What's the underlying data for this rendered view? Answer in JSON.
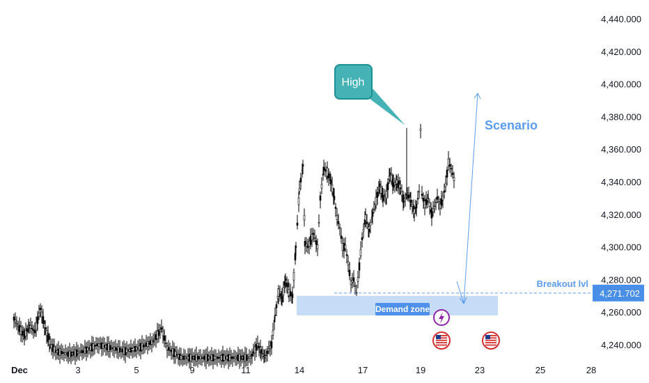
{
  "chart_data": {
    "type": "candlestick",
    "y_axis": {
      "ticks": [
        "4,440.000",
        "4,420.000",
        "4,400.000",
        "4,380.000",
        "4,360.000",
        "4,340.000",
        "4,320.000",
        "4,300.000",
        "4,280.000",
        "4,260.000",
        "4,240.000"
      ],
      "tick_values": [
        4440,
        4420,
        4400,
        4380,
        4360,
        4340,
        4320,
        4300,
        4280,
        4260,
        4240
      ],
      "range": [
        4230,
        4448
      ]
    },
    "x_axis": {
      "ticks": [
        "Dec",
        "3",
        "5",
        "9",
        "11",
        "14",
        "17",
        "19",
        "23",
        "25",
        "28"
      ]
    },
    "price_series": [
      [
        0,
        4256
      ],
      [
        8,
        4250
      ],
      [
        15,
        4245
      ],
      [
        22,
        4252
      ],
      [
        30,
        4248
      ],
      [
        38,
        4262
      ],
      [
        45,
        4250
      ],
      [
        52,
        4240
      ],
      [
        60,
        4236
      ],
      [
        80,
        4234
      ],
      [
        100,
        4236
      ],
      [
        120,
        4240
      ],
      [
        140,
        4238
      ],
      [
        160,
        4236
      ],
      [
        180,
        4238
      ],
      [
        200,
        4242
      ],
      [
        212,
        4250
      ],
      [
        220,
        4238
      ],
      [
        240,
        4232
      ],
      [
        260,
        4232
      ],
      [
        280,
        4232
      ],
      [
        300,
        4232
      ],
      [
        320,
        4232
      ],
      [
        340,
        4232
      ],
      [
        350,
        4240
      ],
      [
        355,
        4236
      ],
      [
        360,
        4232
      ],
      [
        370,
        4240
      ],
      [
        375,
        4258
      ],
      [
        380,
        4272
      ],
      [
        385,
        4268
      ],
      [
        390,
        4280
      ],
      [
        395,
        4272
      ],
      [
        400,
        4270
      ],
      [
        405,
        4300
      ],
      [
        410,
        4335
      ],
      [
        415,
        4350
      ],
      [
        418,
        4302
      ],
      [
        422,
        4300
      ],
      [
        430,
        4308
      ],
      [
        436,
        4300
      ],
      [
        440,
        4330
      ],
      [
        445,
        4348
      ],
      [
        450,
        4346
      ],
      [
        455,
        4340
      ],
      [
        460,
        4330
      ],
      [
        464,
        4318
      ],
      [
        468,
        4312
      ],
      [
        472,
        4300
      ],
      [
        476,
        4300
      ],
      [
        480,
        4290
      ],
      [
        484,
        4278
      ],
      [
        488,
        4280
      ],
      [
        492,
        4272
      ],
      [
        496,
        4288
      ],
      [
        500,
        4305
      ],
      [
        505,
        4318
      ],
      [
        510,
        4310
      ],
      [
        515,
        4320
      ],
      [
        520,
        4328
      ],
      [
        525,
        4338
      ],
      [
        530,
        4330
      ],
      [
        535,
        4332
      ],
      [
        540,
        4345
      ],
      [
        545,
        4338
      ],
      [
        550,
        4340
      ],
      [
        555,
        4336
      ],
      [
        560,
        4328
      ],
      [
        565,
        4333
      ],
      [
        570,
        4328
      ],
      [
        575,
        4322
      ],
      [
        578,
        4325
      ],
      [
        582,
        4334
      ],
      [
        584,
        4372
      ],
      [
        586,
        4332
      ],
      [
        590,
        4326
      ],
      [
        595,
        4330
      ],
      [
        600,
        4320
      ],
      [
        604,
        4325
      ],
      [
        608,
        4330
      ],
      [
        612,
        4325
      ],
      [
        616,
        4330
      ],
      [
        620,
        4338
      ],
      [
        624,
        4352
      ],
      [
        628,
        4348
      ],
      [
        633,
        4340
      ]
    ],
    "annotations": {
      "high_label": "High",
      "high_value": 4373,
      "scenario_label": "Scenario",
      "demand_zone_label": "Demand zone",
      "demand_zone_range": [
        4258,
        4270
      ],
      "breakout_label": "Breakout lvl",
      "breakout_value": 4271.702,
      "breakout_value_text": "4,271.702",
      "scenario_target": 4395
    },
    "colors": {
      "candles": "#000000",
      "high_callout": "#45b2b6",
      "high_callout_border": "#1e8f94",
      "scenario": "#5b9cf0",
      "demand_zone": "#c7dcf7",
      "demand_label_bg": "#4e90ea",
      "breakout_badge": "#4a8fe7",
      "breakout_line": "#5b9cf0",
      "event_flash": "#8e24aa",
      "flag_red": "#d32f2f",
      "flag_blue": "#1e3a8a"
    }
  }
}
